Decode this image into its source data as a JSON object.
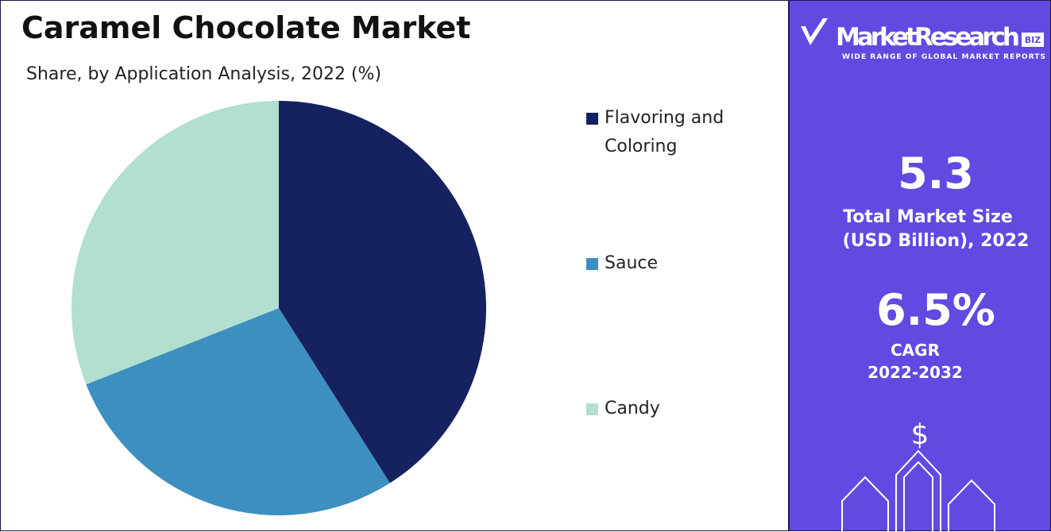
{
  "chart_data": {
    "type": "pie",
    "title": "Caramel Chocolate Market",
    "subtitle": "Share, by Application Analysis, 2022 (%)",
    "categories": [
      "Flavoring and Coloring",
      "Sauce",
      "Candy"
    ],
    "values": [
      41,
      28,
      31
    ],
    "colors": [
      "#16215f",
      "#3d8fc0",
      "#b2dfcf"
    ]
  },
  "sidebar": {
    "logo_name": "MarketResearch",
    "logo_badge": "BIZ",
    "logo_tagline": "WIDE RANGE OF GLOBAL MARKET REPORTS",
    "market_size": "5.3",
    "market_size_label": [
      "Total Market Size",
      "(USD Billion), 2022"
    ],
    "cagr": "6.5%",
    "cagr_label": [
      "CAGR",
      "2022-2032"
    ],
    "icon_symbol": "$"
  }
}
